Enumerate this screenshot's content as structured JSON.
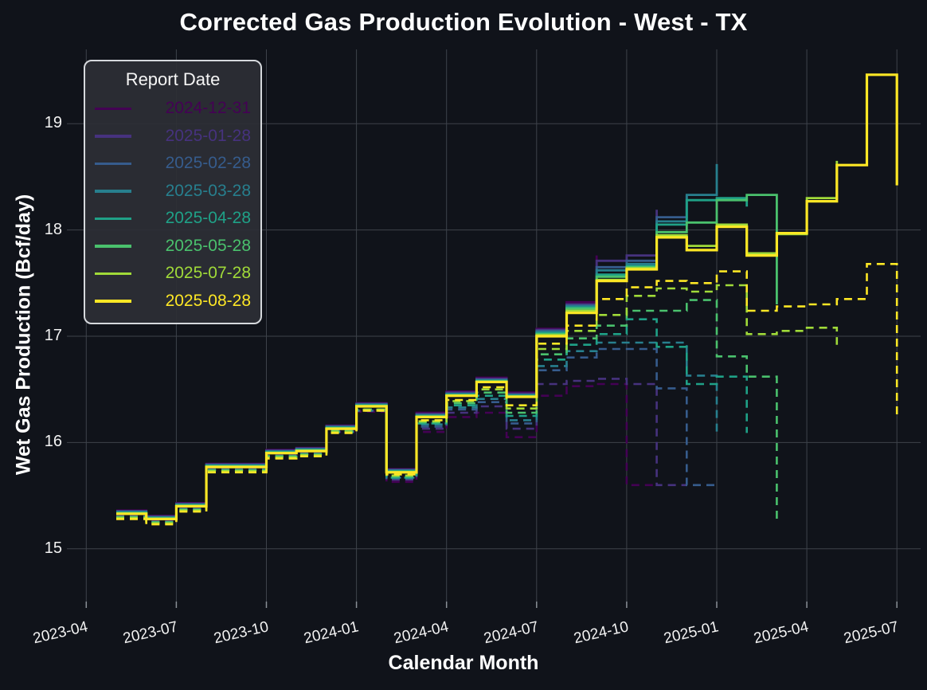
{
  "title": "Corrected Gas Production Evolution - West - TX",
  "x_axis": {
    "label": "Calendar Month",
    "ticks": [
      "2023-04",
      "2023-07",
      "2023-10",
      "2024-01",
      "2024-04",
      "2024-07",
      "2024-10",
      "2025-01",
      "2025-04",
      "2025-07"
    ]
  },
  "y_axis": {
    "label": "Wet Gas Production (Bcf/day)",
    "ticks": [
      "15",
      "16",
      "17",
      "18",
      "19"
    ]
  },
  "legend": {
    "title": "Report Date"
  },
  "colors": {
    "background": "#10131a",
    "gridline": "#3e434b",
    "tick_mark": "#8a9097",
    "text": "#ffffff",
    "legend_background": "#2c2f35",
    "legend_border": "#d6d9dd"
  },
  "chart_data": {
    "type": "line",
    "step": "hv",
    "grid": true,
    "legend_position": "top-left",
    "ylim": [
      14.55,
      19.7
    ],
    "y_ticks": [
      15,
      16,
      17,
      18,
      19
    ],
    "months": [
      "2023-05",
      "2023-06",
      "2023-07",
      "2023-08",
      "2023-09",
      "2023-10",
      "2023-11",
      "2023-12",
      "2024-01",
      "2024-02",
      "2024-03",
      "2024-04",
      "2024-05",
      "2024-06",
      "2024-07",
      "2024-08",
      "2024-09",
      "2024-10",
      "2024-11",
      "2024-12",
      "2025-01",
      "2025-02",
      "2025-03",
      "2025-04",
      "2025-05",
      "2025-06",
      "2025-07"
    ],
    "series": [
      {
        "name": "2024-12-31",
        "color": "#440154",
        "solid": [
          15.36,
          15.31,
          15.43,
          15.8,
          15.8,
          15.93,
          15.95,
          16.16,
          16.37,
          15.75,
          16.28,
          16.48,
          16.61,
          16.47,
          17.07,
          17.32,
          17.76,
          null,
          null,
          null,
          null,
          null,
          null,
          null,
          null,
          null,
          null
        ],
        "dashed": [
          15.31,
          15.26,
          15.38,
          15.75,
          15.75,
          15.88,
          15.9,
          16.1,
          16.29,
          15.63,
          16.1,
          16.24,
          16.28,
          16.05,
          16.44,
          16.53,
          16.55,
          15.6,
          15.6,
          null,
          null,
          null,
          null,
          null,
          null,
          null,
          null
        ]
      },
      {
        "name": "2025-01-28",
        "color": "#46327e",
        "solid": [
          15.355,
          15.305,
          15.425,
          15.795,
          15.795,
          15.925,
          15.945,
          16.155,
          16.365,
          15.745,
          16.27,
          16.47,
          16.6,
          16.46,
          17.06,
          17.3,
          17.71,
          17.76,
          18.19,
          null,
          null,
          null,
          null,
          null,
          null,
          null,
          null
        ],
        "dashed": [
          15.31,
          15.26,
          15.38,
          15.75,
          15.75,
          15.88,
          15.9,
          16.11,
          16.3,
          15.65,
          16.13,
          16.28,
          16.34,
          16.13,
          16.55,
          16.58,
          16.6,
          16.55,
          15.6,
          15.6,
          null,
          null,
          null,
          null,
          null,
          null,
          null
        ]
      },
      {
        "name": "2025-02-28",
        "color": "#365c8d",
        "solid": [
          15.35,
          15.3,
          15.42,
          15.79,
          15.79,
          15.92,
          15.94,
          16.15,
          16.36,
          15.74,
          16.26,
          16.46,
          16.59,
          16.45,
          17.05,
          17.29,
          17.65,
          17.71,
          18.12,
          18.33,
          null,
          null,
          null,
          null,
          null,
          null,
          null
        ],
        "dashed": [
          15.3,
          15.25,
          15.37,
          15.74,
          15.74,
          15.87,
          15.89,
          16.1,
          16.3,
          15.66,
          16.15,
          16.31,
          16.38,
          16.18,
          16.68,
          16.8,
          16.88,
          16.88,
          16.51,
          15.6,
          15.6,
          null,
          null,
          null,
          null,
          null,
          null
        ]
      },
      {
        "name": "2025-03-28",
        "color": "#277f8e",
        "solid": [
          15.345,
          15.295,
          15.415,
          15.785,
          15.785,
          15.915,
          15.935,
          16.145,
          16.355,
          15.735,
          16.255,
          16.455,
          16.585,
          16.445,
          17.04,
          17.28,
          17.62,
          17.68,
          18.08,
          18.33,
          18.62,
          null,
          null,
          null,
          null,
          null,
          null
        ],
        "dashed": [
          15.3,
          15.25,
          15.37,
          15.74,
          15.74,
          15.87,
          15.89,
          16.1,
          16.3,
          15.67,
          16.17,
          16.33,
          16.41,
          16.21,
          16.72,
          16.86,
          16.94,
          16.94,
          16.94,
          16.63,
          16.1,
          null,
          null,
          null,
          null,
          null,
          null
        ]
      },
      {
        "name": "2025-04-28",
        "color": "#1fa187",
        "solid": [
          15.34,
          15.29,
          15.41,
          15.78,
          15.78,
          15.91,
          15.93,
          16.14,
          16.35,
          15.73,
          16.25,
          16.45,
          16.58,
          16.44,
          17.03,
          17.27,
          17.58,
          17.66,
          18.05,
          18.28,
          18.3,
          18.22,
          null,
          null,
          null,
          null,
          null
        ],
        "dashed": [
          15.3,
          15.25,
          15.37,
          15.74,
          15.74,
          15.87,
          15.89,
          16.1,
          16.31,
          15.67,
          16.18,
          16.35,
          16.44,
          16.25,
          16.78,
          16.92,
          17.02,
          17.16,
          16.9,
          16.55,
          16.62,
          16.09,
          null,
          null,
          null,
          null,
          null
        ]
      },
      {
        "name": "2025-05-28",
        "color": "#4ac16d",
        "solid": [
          15.335,
          15.285,
          15.405,
          15.775,
          15.775,
          15.905,
          15.925,
          16.135,
          16.345,
          15.725,
          16.245,
          16.445,
          16.575,
          16.435,
          17.02,
          17.26,
          17.56,
          17.65,
          17.98,
          18.07,
          18.28,
          18.33,
          17.3,
          null,
          null,
          null,
          null
        ],
        "dashed": [
          15.3,
          15.25,
          15.37,
          15.74,
          15.74,
          15.87,
          15.89,
          16.11,
          16.31,
          15.68,
          16.19,
          16.37,
          16.47,
          16.28,
          16.83,
          16.98,
          17.1,
          17.24,
          17.24,
          17.34,
          16.81,
          16.62,
          15.24,
          null,
          null,
          null,
          null
        ]
      },
      {
        "name": "2025-07-28",
        "color": "#a0da39",
        "solid": [
          15.33,
          15.28,
          15.4,
          15.77,
          15.77,
          15.9,
          15.92,
          16.13,
          16.34,
          15.72,
          16.24,
          16.44,
          16.57,
          16.43,
          17.01,
          17.24,
          17.53,
          17.64,
          17.95,
          17.85,
          18.05,
          17.78,
          17.96,
          18.3,
          18.65,
          null,
          null
        ],
        "dashed": [
          15.29,
          15.24,
          15.36,
          15.73,
          15.73,
          15.86,
          15.88,
          16.1,
          16.31,
          15.69,
          16.2,
          16.39,
          16.5,
          16.32,
          16.88,
          17.05,
          17.2,
          17.38,
          17.45,
          17.42,
          17.48,
          17.02,
          17.05,
          17.08,
          16.92,
          null,
          null
        ]
      },
      {
        "name": "2025-08-28",
        "color": "#fde725",
        "solid": [
          15.33,
          15.28,
          15.4,
          15.77,
          15.77,
          15.9,
          15.92,
          16.13,
          16.34,
          15.72,
          16.24,
          16.44,
          16.57,
          16.43,
          17.0,
          17.22,
          17.52,
          17.63,
          17.93,
          17.81,
          18.03,
          17.76,
          17.97,
          18.27,
          18.61,
          19.46,
          18.42
        ],
        "dashed": [
          15.28,
          15.23,
          15.35,
          15.72,
          15.72,
          15.85,
          15.87,
          16.09,
          16.3,
          15.7,
          16.21,
          16.4,
          16.52,
          16.35,
          16.93,
          17.1,
          17.35,
          17.46,
          17.52,
          17.5,
          17.61,
          17.24,
          17.28,
          17.3,
          17.35,
          17.68,
          16.24
        ]
      }
    ]
  }
}
